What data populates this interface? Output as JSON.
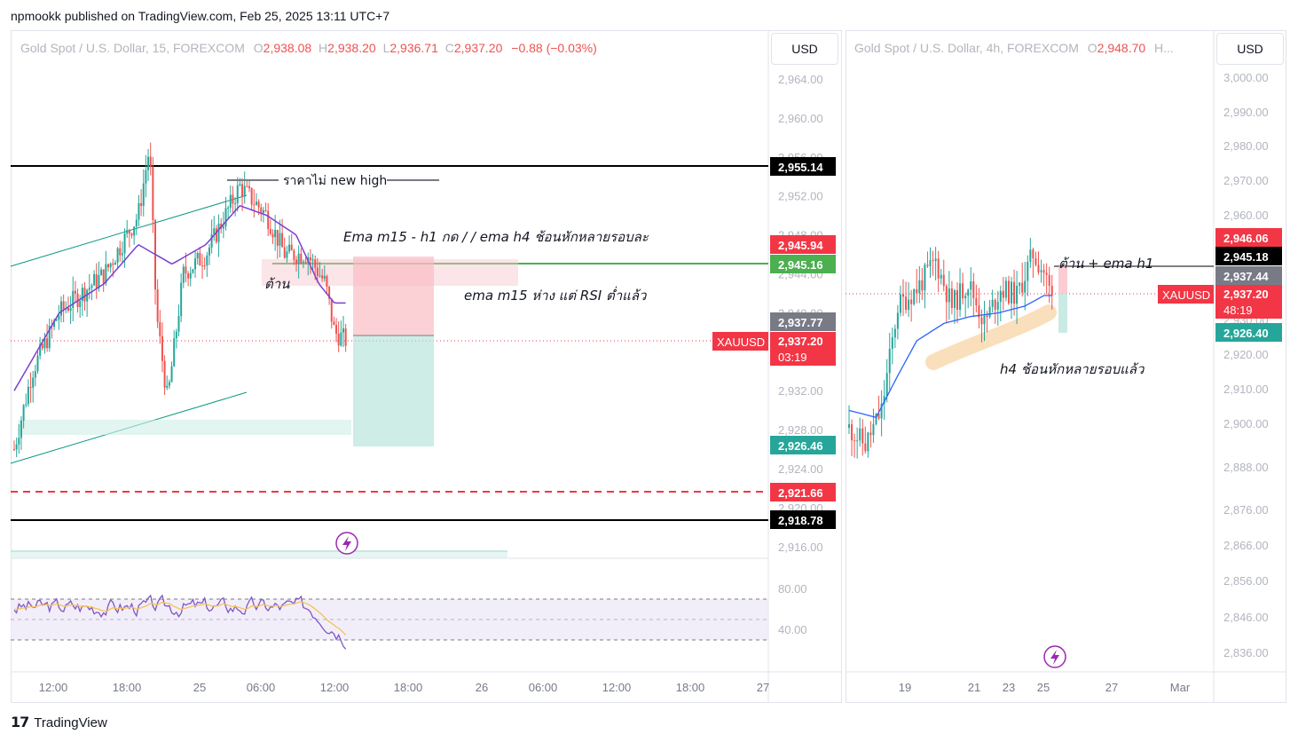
{
  "header": {
    "publish_line": "npmookk published on TradingView.com, Feb 25, 2025 13:11 UTC+7"
  },
  "footer": {
    "brand": "TradingView"
  },
  "colors": {
    "up": "#26a69a",
    "down": "#ef5350",
    "ema_m15": "#7b3fd0",
    "ema_h4": "#2962ff",
    "rsi": "#7e57c2",
    "rsi_ma": "#f7c257"
  },
  "left_chart": {
    "legend": {
      "name": "Gold Spot / U.S. Dollar, 15, FOREXCOM",
      "o_label": "O",
      "o": "2,938.08",
      "h_label": "H",
      "h": "2,938.20",
      "l_label": "L",
      "l": "2,936.71",
      "c_label": "C",
      "c": "2,937.20",
      "change": "−0.88 (−0.03%)"
    },
    "currency": "USD",
    "y_ticks": [
      "2,964.00",
      "2,960.00",
      "2,956.00",
      "2,952.00",
      "2,948.00",
      "2,944.00",
      "2,940.00",
      "2,936.00",
      "2,932.00",
      "2,928.00",
      "2,924.00",
      "2,920.00",
      "2,916.00"
    ],
    "x_ticks": [
      "12:00",
      "18:00",
      "25",
      "06:00",
      "12:00",
      "18:00",
      "26",
      "06:00",
      "12:00",
      "18:00",
      "27"
    ],
    "badges": {
      "resistance_high": "2,955.14",
      "short_entry_top": "2,945.94",
      "green_line": "2,945.16",
      "grey_level": "2,937.77",
      "symbol": "XAUUSD",
      "price": "2,937.20",
      "countdown": "03:19",
      "target": "2,926.46",
      "red_dashed": "2,921.66",
      "support_low": "2,918.78"
    },
    "annotations": {
      "no_new_high": "ราคาไม่ new high",
      "ema_note": "Ema m15 - h1  กด / / ema h4 ช้อนหักหลายรอบละ",
      "resistance": "ต้าน",
      "rsi_note": "ema m15 ห่าง แต่ RSI ต่ำแล้ว"
    },
    "rsi": {
      "ticks": [
        "80.00",
        "40.00"
      ]
    }
  },
  "right_chart": {
    "legend": {
      "name": "Gold Spot / U.S. Dollar, 4h, FOREXCOM",
      "o_label": "O",
      "o": "2,948.70",
      "more": "H..."
    },
    "currency": "USD",
    "y_ticks": [
      "3,000.00",
      "2,990.00",
      "2,980.00",
      "2,970.00",
      "2,960.00",
      "2,950.00",
      "2,940.00",
      "2,930.00",
      "2,920.00",
      "2,910.00",
      "2,900.00",
      "2,888.00",
      "2,876.00",
      "2,866.00",
      "2,856.00",
      "2,846.00",
      "2,836.00"
    ],
    "x_ticks": [
      "19",
      "21",
      "23",
      "25",
      "27",
      "Mar"
    ],
    "badges": {
      "top": "2,946.06",
      "resistance": "2,945.18",
      "grey": "2,937.44",
      "symbol": "XAUUSD",
      "price": "2,937.20",
      "countdown": "48:19",
      "target": "2,926.40"
    },
    "annotations": {
      "resistance_ema": "ต้าน + ema h1",
      "h4_note": "h4 ช้อนหักหลายรอบแล้ว"
    }
  },
  "chart_data": [
    {
      "type": "candlestick",
      "title": "Gold Spot / U.S. Dollar, 15, FOREXCOM",
      "ylim": [
        2914,
        2967
      ],
      "x_range": [
        "Feb 24 09:00",
        "Feb 27 00:00"
      ],
      "series": [
        {
          "name": "price",
          "approx_path": [
            [
              0,
              2926
            ],
            [
              8,
              2934
            ],
            [
              20,
              2940
            ],
            [
              40,
              2944
            ],
            [
              55,
              2950
            ],
            [
              60,
              2957
            ],
            [
              63,
              2940
            ],
            [
              68,
              2931
            ],
            [
              75,
              2944
            ],
            [
              85,
              2946
            ],
            [
              100,
              2953
            ],
            [
              112,
              2950
            ],
            [
              120,
              2946
            ],
            [
              130,
              2946
            ],
            [
              138,
              2943
            ],
            [
              142,
              2938
            ],
            [
              147,
              2937.2
            ]
          ]
        },
        {
          "name": "ema",
          "approx_path": [
            [
              0,
              2932
            ],
            [
              20,
              2940
            ],
            [
              40,
              2943
            ],
            [
              55,
              2947
            ],
            [
              70,
              2945
            ],
            [
              85,
              2947
            ],
            [
              100,
              2951
            ],
            [
              112,
              2950
            ],
            [
              125,
              2948
            ],
            [
              135,
              2943
            ],
            [
              142,
              2941
            ]
          ]
        }
      ],
      "levels": [
        2955.14,
        2945.94,
        2945.16,
        2937.77,
        2937.2,
        2926.46,
        2921.66,
        2918.78
      ]
    },
    {
      "type": "candlestick",
      "title": "Gold Spot / U.S. Dollar, 4h, FOREXCOM",
      "ylim": [
        2832,
        3005
      ],
      "x_range": [
        "Feb 18",
        "Mar 1"
      ],
      "series": [
        {
          "name": "price",
          "approx_path": [
            [
              0,
              2900
            ],
            [
              6,
              2895
            ],
            [
              12,
              2905
            ],
            [
              18,
              2935
            ],
            [
              25,
              2940
            ],
            [
              32,
              2948
            ],
            [
              38,
              2935
            ],
            [
              44,
              2942
            ],
            [
              50,
              2930
            ],
            [
              56,
              2940
            ],
            [
              62,
              2938
            ],
            [
              68,
              2950
            ],
            [
              72,
              2945
            ],
            [
              75,
              2937.2
            ]
          ]
        },
        {
          "name": "ema",
          "approx_path": [
            [
              0,
              2905
            ],
            [
              10,
              2903
            ],
            [
              18,
              2915
            ],
            [
              25,
              2925
            ],
            [
              35,
              2930
            ],
            [
              45,
              2932
            ],
            [
              55,
              2933
            ],
            [
              65,
              2935
            ],
            [
              72,
              2938
            ]
          ]
        }
      ],
      "levels": [
        2946.06,
        2945.18,
        2937.44,
        2937.2,
        2926.4
      ]
    }
  ]
}
